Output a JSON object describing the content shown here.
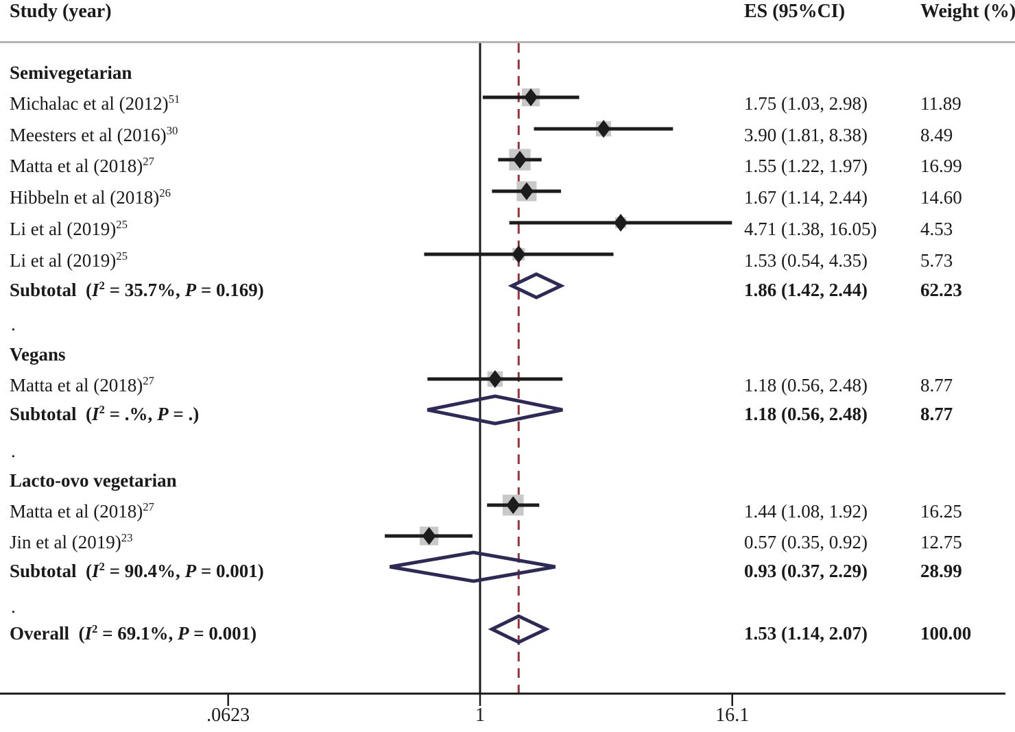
{
  "header": {
    "study": "Study (year)",
    "es": "ES (95%CI)",
    "weight": "Weight (%)"
  },
  "axis": {
    "scale": "log",
    "ticks": [
      {
        "label": ".0623",
        "value": 0.0623
      },
      {
        "label": "1",
        "value": 1
      },
      {
        "label": "16.1",
        "value": 16.1
      }
    ],
    "null_value": 1,
    "dashed_reference_value": 1.53
  },
  "colors": {
    "text": "#1a1a1a",
    "marker": "#1c1c1c",
    "ci_line": "#1c1c1c",
    "weight_box": "#c8c8c8",
    "diamond": "#2d2a58",
    "dashed_line": "#9c3137",
    "axis": "#1a1a1a",
    "top_line": "#b4b4b6"
  },
  "separator_dot": ".",
  "chart_data": {
    "type": "forest",
    "x_scale": "log",
    "x_ticks": [
      0.0623,
      1,
      16.1
    ],
    "groups": [
      {
        "name": "Semivegetarian",
        "studies": [
          {
            "label": "Michalac et al (2012)",
            "sup": "51",
            "es": 1.75,
            "lo": 1.03,
            "hi": 2.98,
            "es_text": "1.75 (1.03, 2.98)",
            "weight": 11.89,
            "weight_text": "11.89"
          },
          {
            "label": "Meesters et al (2016)",
            "sup": "30",
            "es": 3.9,
            "lo": 1.81,
            "hi": 8.38,
            "es_text": "3.90 (1.81, 8.38)",
            "weight": 8.49,
            "weight_text": "8.49"
          },
          {
            "label": "Matta et al (2018)",
            "sup": "27",
            "es": 1.55,
            "lo": 1.22,
            "hi": 1.97,
            "es_text": "1.55 (1.22, 1.97)",
            "weight": 16.99,
            "weight_text": "16.99"
          },
          {
            "label": "Hibbeln et al (2018)",
            "sup": "26",
            "es": 1.67,
            "lo": 1.14,
            "hi": 2.44,
            "es_text": "1.67 (1.14, 2.44)",
            "weight": 14.6,
            "weight_text": "14.60"
          },
          {
            "label": "Li et al (2019)",
            "sup": "25",
            "es": 4.71,
            "lo": 1.38,
            "hi": 16.05,
            "es_text": "4.71 (1.38, 16.05)",
            "weight": 4.53,
            "weight_text": "4.53"
          },
          {
            "label": "Li et al (2019)",
            "sup": "25",
            "es": 1.53,
            "lo": 0.54,
            "hi": 4.35,
            "es_text": "1.53 (0.54, 4.35)",
            "weight": 5.73,
            "weight_text": "5.73"
          }
        ],
        "subtotal": {
          "prefix": "Subtotal",
          "i2": "35.7%",
          "p": "0.169",
          "es": 1.86,
          "lo": 1.42,
          "hi": 2.44,
          "es_text": "1.86 (1.42, 2.44)",
          "weight_text": "62.23"
        }
      },
      {
        "name": "Vegans",
        "studies": [
          {
            "label": "Matta et al (2018)",
            "sup": "27",
            "es": 1.18,
            "lo": 0.56,
            "hi": 2.48,
            "es_text": "1.18 (0.56, 2.48)",
            "weight": 8.77,
            "weight_text": "8.77"
          }
        ],
        "subtotal": {
          "prefix": "Subtotal",
          "i2": ".%",
          "p": ".",
          "es": 1.18,
          "lo": 0.56,
          "hi": 2.48,
          "es_text": "1.18 (0.56, 2.48)",
          "weight_text": "8.77"
        }
      },
      {
        "name": "Lacto-ovo vegetarian",
        "studies": [
          {
            "label": "Matta et al (2018)",
            "sup": "27",
            "es": 1.44,
            "lo": 1.08,
            "hi": 1.92,
            "es_text": "1.44 (1.08, 1.92)",
            "weight": 16.25,
            "weight_text": "16.25"
          },
          {
            "label": "Jin et al (2019)",
            "sup": "23",
            "es": 0.57,
            "lo": 0.35,
            "hi": 0.92,
            "es_text": "0.57 (0.35, 0.92)",
            "weight": 12.75,
            "weight_text": "12.75"
          }
        ],
        "subtotal": {
          "prefix": "Subtotal",
          "i2": "90.4%",
          "p": "0.001",
          "es": 0.93,
          "lo": 0.37,
          "hi": 2.29,
          "es_text": "0.93 (0.37, 2.29)",
          "weight_text": "28.99"
        }
      }
    ],
    "overall": {
      "prefix": "Overall",
      "i2": "69.1%",
      "p": "0.001",
      "es": 1.53,
      "lo": 1.14,
      "hi": 2.07,
      "es_text": "1.53 (1.14, 2.07)",
      "weight_text": "100.00"
    }
  }
}
